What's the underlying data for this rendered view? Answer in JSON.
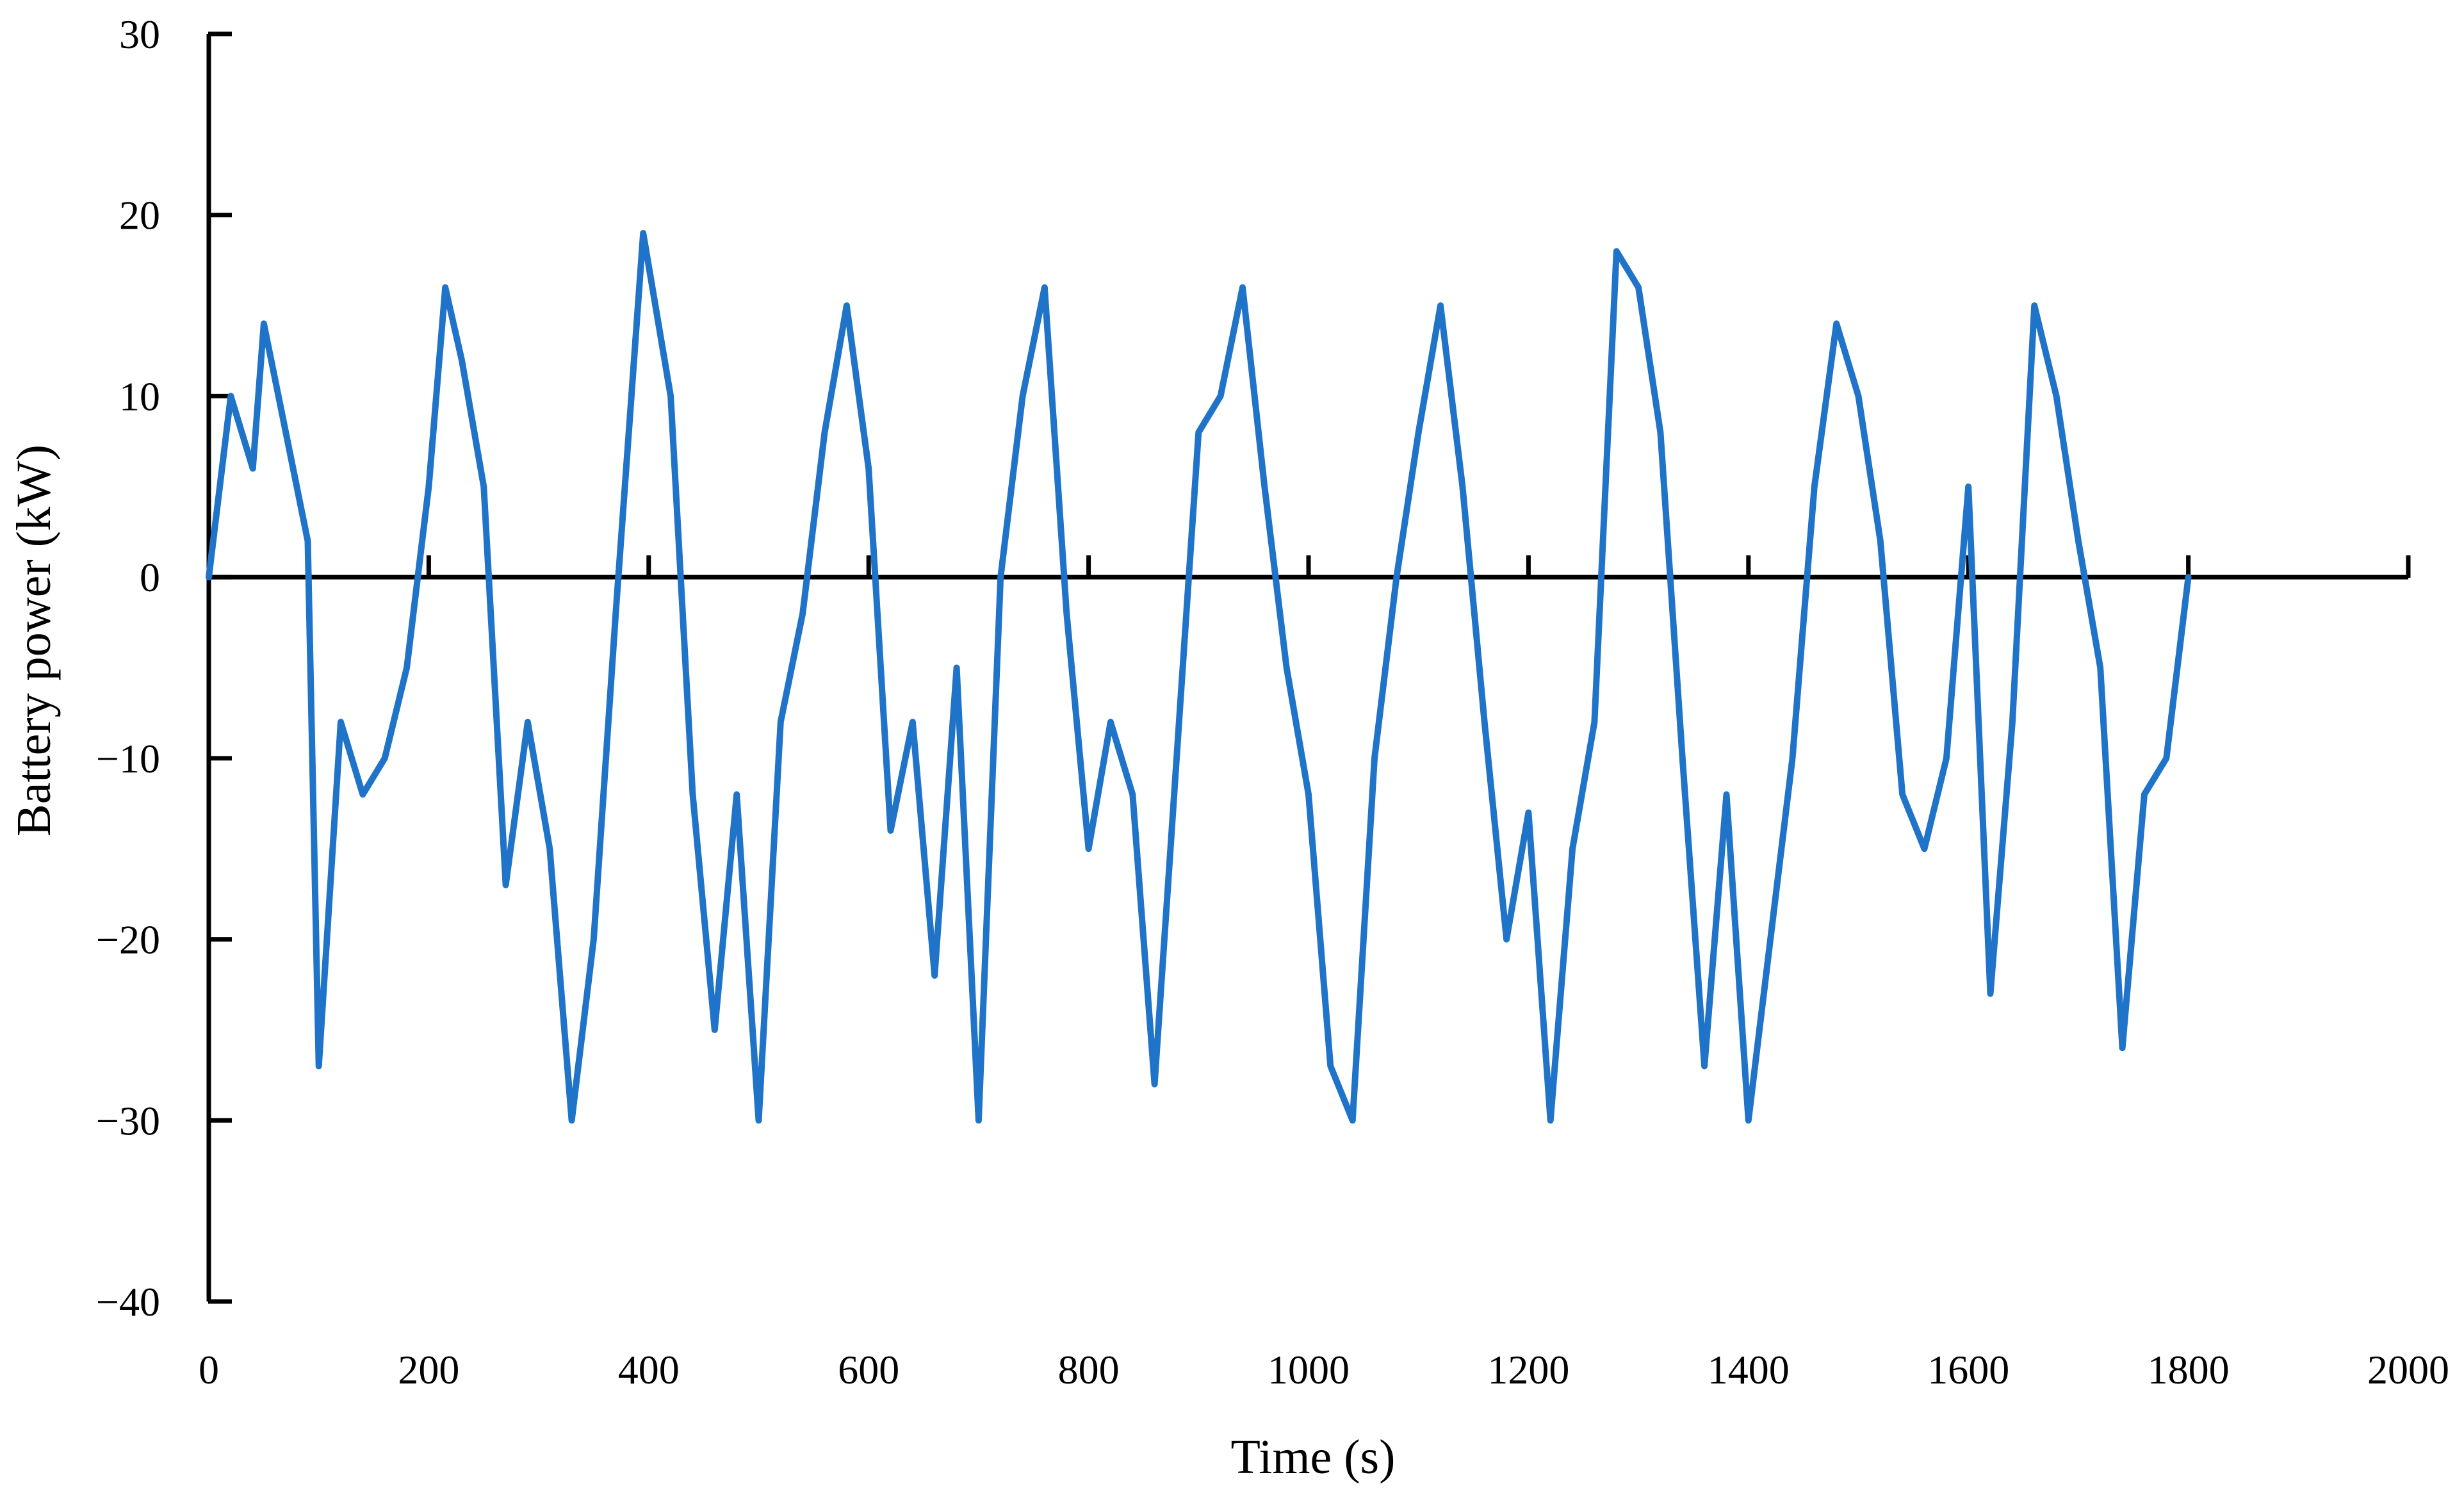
{
  "chart_data": {
    "type": "line",
    "title": "",
    "xlabel": "Time (s)",
    "ylabel": "Battery power (kW)",
    "xlim": [
      0,
      2000
    ],
    "ylim": [
      -40,
      30
    ],
    "xticks": [
      0,
      200,
      400,
      600,
      800,
      1000,
      1200,
      1400,
      1600,
      1800,
      2000
    ],
    "yticks": [
      30,
      20,
      10,
      0,
      -10,
      -20,
      -30,
      -40
    ],
    "xtick_labels": [
      "0",
      "200",
      "400",
      "600",
      "800",
      "1000",
      "1200",
      "1400",
      "1600",
      "1800",
      "2000"
    ],
    "ytick_labels": [
      "30",
      "20",
      "10",
      "0",
      "−10",
      "−20",
      "−30",
      "−40"
    ],
    "grid": false,
    "legend": "none",
    "line_color": "#1f73c8",
    "axis_color": "#000000",
    "series": [
      {
        "x": [
          0,
          20,
          40,
          50,
          70,
          90,
          100,
          120,
          140,
          160,
          180,
          200,
          215,
          230,
          250,
          270,
          290,
          310,
          330,
          350,
          370,
          395,
          420,
          440,
          460,
          480,
          500,
          520,
          540,
          560,
          580,
          600,
          620,
          640,
          660,
          680,
          700,
          720,
          740,
          760,
          780,
          800,
          820,
          840,
          860,
          880,
          900,
          920,
          940,
          960,
          980,
          1000,
          1020,
          1040,
          1060,
          1080,
          1100,
          1120,
          1140,
          1160,
          1180,
          1200,
          1220,
          1240,
          1260,
          1280,
          1300,
          1320,
          1340,
          1360,
          1380,
          1400,
          1420,
          1440,
          1460,
          1480,
          1500,
          1520,
          1540,
          1560,
          1580,
          1600,
          1620,
          1640,
          1660,
          1680,
          1700,
          1720,
          1740,
          1760,
          1780,
          1800
        ],
        "values": [
          0,
          10,
          6,
          14,
          8,
          2,
          -27,
          -8,
          -12,
          -10,
          -5,
          5,
          16,
          12,
          5,
          -17,
          -8,
          -15,
          -30,
          -20,
          -2,
          19,
          10,
          -12,
          -25,
          -12,
          -30,
          -8,
          -2,
          8,
          15,
          6,
          -14,
          -8,
          -22,
          -5,
          -30,
          0,
          10,
          16,
          -2,
          -15,
          -8,
          -12,
          -28,
          -10,
          8,
          10,
          16,
          5,
          -5,
          -12,
          -27,
          -30,
          -10,
          0,
          8,
          15,
          5,
          -8,
          -20,
          -13,
          -30,
          -15,
          -8,
          18,
          16,
          8,
          -10,
          -27,
          -12,
          -30,
          -20,
          -10,
          5,
          14,
          10,
          2,
          -12,
          -15,
          -10,
          5,
          -23,
          -8,
          15,
          10,
          2,
          -5,
          -26,
          -12,
          -10,
          0
        ]
      }
    ]
  }
}
